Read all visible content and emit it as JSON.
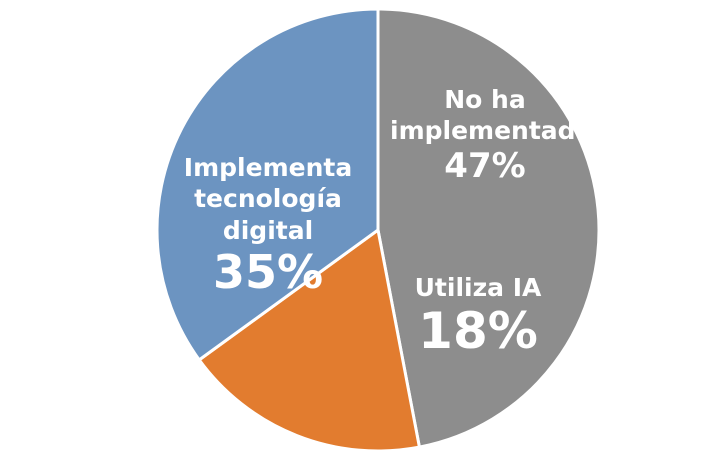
{
  "chart_data": {
    "type": "pie",
    "categories": [
      "No ha implementado",
      "Utiliza IA",
      "Implementa tecnología digital"
    ],
    "values": [
      47,
      18,
      35
    ],
    "value_labels": [
      "47%",
      "18%",
      "35%"
    ],
    "colors": [
      "#8d8d8d",
      "#e27c2f",
      "#6c94c1"
    ]
  }
}
